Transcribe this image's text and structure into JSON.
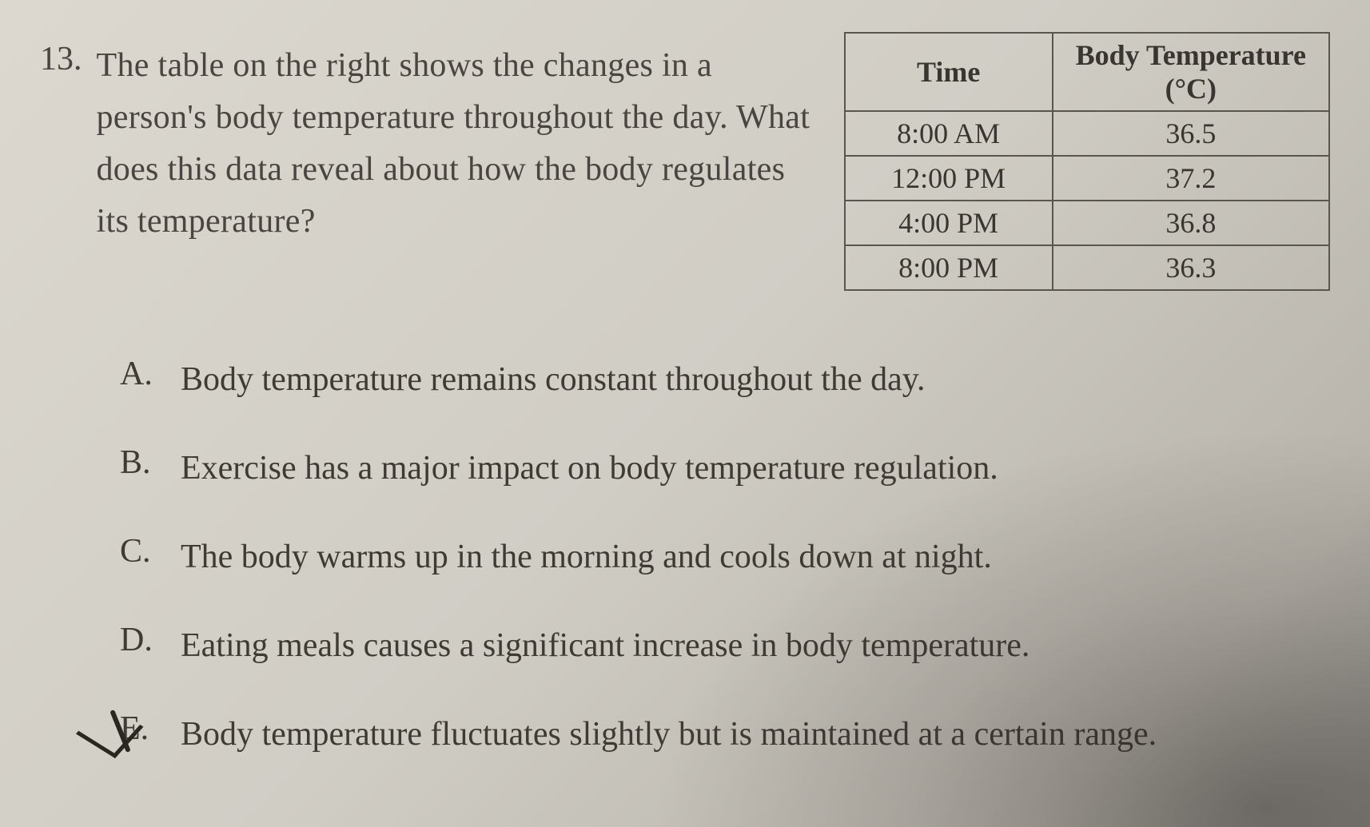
{
  "question": {
    "number": "13.",
    "text": "The table on the right shows the changes in a person's body temperature throughout the day. What does this data reveal about how the body regulates its temperature?"
  },
  "table": {
    "type": "table",
    "columns": [
      {
        "label": "Time",
        "sub": ""
      },
      {
        "label": "Body Temperature",
        "sub": "(°C)"
      }
    ],
    "rows": [
      [
        "8:00 AM",
        "36.5"
      ],
      [
        "12:00 PM",
        "37.2"
      ],
      [
        "4:00 PM",
        "36.8"
      ],
      [
        "8:00 PM",
        "36.3"
      ]
    ],
    "border_color": "#5a554e",
    "header_fontweight": 700,
    "cell_fontsize": 36
  },
  "options": [
    {
      "letter": "A.",
      "text": "Body temperature remains constant throughout the day.",
      "marked": false
    },
    {
      "letter": "B.",
      "text": "Exercise has a major impact on body temperature regulation.",
      "marked": false
    },
    {
      "letter": "C.",
      "text": "The body warms up in the morning and cools down at night.",
      "marked": false
    },
    {
      "letter": "D.",
      "text": "Eating meals causes a significant increase in body temperature.",
      "marked": false
    },
    {
      "letter": "E.",
      "text": "Body temperature fluctuates slightly but is maintained at a certain range.",
      "marked": true
    }
  ],
  "styling": {
    "background_gradient": [
      "#dcd8d0",
      "#d0cdc5",
      "#b8b4ac",
      "#989490"
    ],
    "text_color": "#3a3530",
    "question_fontsize": 42,
    "option_fontsize": 42,
    "font_family": "Georgia, Times New Roman, serif"
  }
}
